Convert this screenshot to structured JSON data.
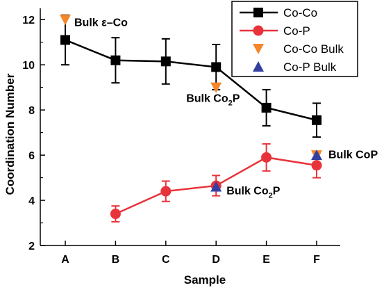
{
  "chart_data": {
    "type": "line",
    "title": "",
    "xlabel": "Sample",
    "ylabel": "Coordination Number",
    "categories": [
      "A",
      "B",
      "C",
      "D",
      "E",
      "F"
    ],
    "ylim": [
      2,
      12.5
    ],
    "yticks": [
      2,
      4,
      6,
      8,
      10,
      12
    ],
    "grid": false,
    "legend_position": "top-right",
    "series": [
      {
        "name": "Co-Co",
        "marker": "square",
        "color": "#000000",
        "values": [
          11.1,
          10.2,
          10.15,
          9.9,
          8.1,
          7.55
        ],
        "error": [
          1.1,
          1.0,
          1.0,
          1.0,
          0.8,
          0.75
        ]
      },
      {
        "name": "Co-P",
        "marker": "circle",
        "color": "#e8333a",
        "values": [
          null,
          3.4,
          4.4,
          4.65,
          5.9,
          5.55
        ],
        "error": [
          null,
          0.35,
          0.45,
          0.45,
          0.6,
          0.55
        ]
      }
    ],
    "bulk_points": [
      {
        "series": "Co-Co Bulk",
        "category": "A",
        "value": 12,
        "marker": "triangle-down",
        "color": "#f5862a"
      },
      {
        "series": "Co-Co Bulk",
        "category": "D",
        "value": 9,
        "marker": "triangle-down",
        "color": "#f5862a"
      },
      {
        "series": "Co-Co Bulk",
        "category": "F",
        "value": 6,
        "marker": "triangle-down",
        "color": "#f5862a"
      },
      {
        "series": "Co-P Bulk",
        "category": "D",
        "value": 4.6,
        "marker": "triangle-up",
        "color": "#3340a0"
      },
      {
        "series": "Co-P Bulk",
        "category": "F",
        "value": 6,
        "marker": "triangle-up",
        "color": "#3340a0"
      }
    ],
    "legend": [
      {
        "label": "Co-Co",
        "marker": "square",
        "color": "#000000",
        "line": true
      },
      {
        "label": "Co-P",
        "marker": "circle",
        "color": "#e8333a",
        "line": true
      },
      {
        "label": "Co-Co Bulk",
        "marker": "triangle-down",
        "color": "#f5862a",
        "line": false
      },
      {
        "label": "Co-P Bulk",
        "marker": "triangle-up",
        "color": "#3340a0",
        "line": false
      }
    ],
    "annotations": [
      {
        "id": "bulk-eco",
        "text": "Bulk ε–Co",
        "category": "A",
        "value": 11.9
      },
      {
        "id": "bulk-co2p-upper",
        "text": "Bulk Co",
        "sub": "2",
        "suffix": "P",
        "category": "D",
        "value": 8.55
      },
      {
        "id": "bulk-co2p-lower",
        "text": "Bulk Co",
        "sub": "2",
        "suffix": "P",
        "category": "D",
        "value": 4.45
      },
      {
        "id": "bulk-cop",
        "text": "Bulk CoP",
        "category": "F",
        "value": 6.05
      }
    ]
  }
}
